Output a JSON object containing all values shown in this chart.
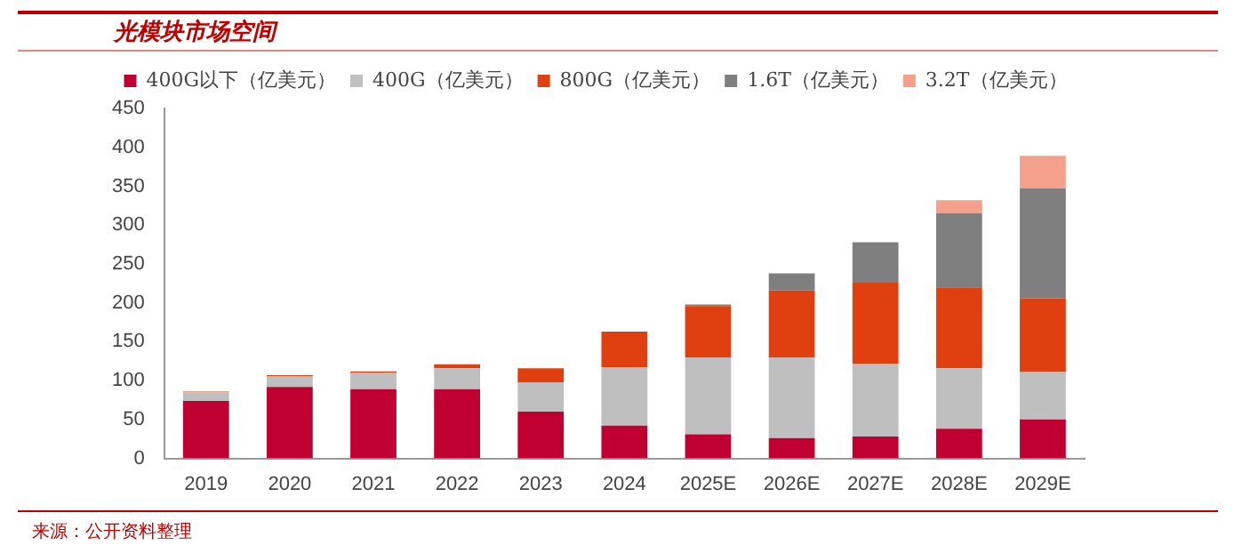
{
  "chart_data": {
    "type": "bar",
    "title": "光模块市场空间",
    "annotations": [
      "来源：公开资料整理"
    ],
    "categories": [
      "2019",
      "2020",
      "2021",
      "2022",
      "2023",
      "2024",
      "2025E",
      "2026E",
      "2027E",
      "2028E",
      "2029E"
    ],
    "series": [
      {
        "name": "400G以下（亿美元）",
        "color": "#c00030",
        "values": [
          74,
          92,
          89,
          89,
          60,
          42,
          31,
          26,
          28,
          38,
          50
        ]
      },
      {
        "name": "400G（亿美元）",
        "color": "#bfbfbf",
        "values": [
          11,
          14,
          21,
          27,
          38,
          75,
          99,
          104,
          94,
          78,
          61
        ]
      },
      {
        "name": "800G（亿美元）",
        "color": "#e04010",
        "values": [
          1,
          1,
          2,
          5,
          18,
          46,
          66,
          86,
          104,
          104,
          95
        ]
      },
      {
        "name": "1.6T（亿美元）",
        "color": "#7f7f7f",
        "values": [
          0,
          0,
          0,
          0,
          0,
          0,
          2,
          22,
          52,
          95,
          141
        ]
      },
      {
        "name": "3.2T（亿美元）",
        "color": "#f4a08c",
        "values": [
          0,
          0,
          0,
          0,
          0,
          0,
          0,
          0,
          0,
          17,
          42
        ]
      }
    ],
    "stacked": true,
    "ylim": [
      0,
      450
    ],
    "yticks": [
      0,
      50,
      100,
      150,
      200,
      250,
      300,
      350,
      400,
      450
    ],
    "grid": false,
    "legend": "top"
  }
}
